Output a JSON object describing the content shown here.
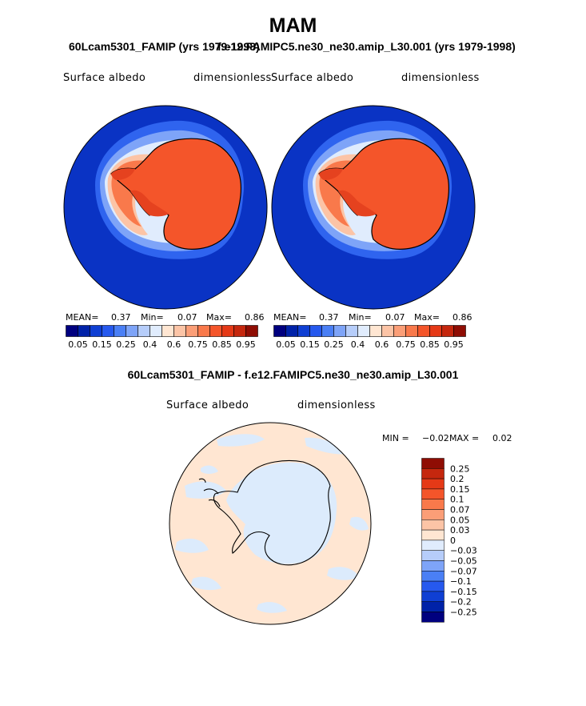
{
  "season": "MAM",
  "panels": [
    {
      "title": "60Lcam5301_FAMIP (yrs 1979-1998)",
      "variable_label": "Surface albedo",
      "units_label": "dimensionless",
      "stats": {
        "mean_label": "MEAN=",
        "mean": "0.37",
        "min_label": "Min=",
        "min": "0.07",
        "max_label": "Max=",
        "max": "0.86"
      }
    },
    {
      "title": "f.e12.FAMIPC5.ne30_ne30.amip_L30.001 (yrs 1979-1998)",
      "variable_label": "Surface albedo",
      "units_label": "dimensionless",
      "stats": {
        "mean_label": "MEAN=",
        "mean": "0.37",
        "min_label": "Min=",
        "min": "0.07",
        "max_label": "Max=",
        "max": "0.86"
      }
    }
  ],
  "colorbar_levels": [
    "0.05",
    "0.15",
    "0.25",
    "0.4",
    "0.6",
    "0.75",
    "0.85",
    "0.95"
  ],
  "colorbar_colors": [
    "#00007f",
    "#0022a8",
    "#0f3fd3",
    "#2659ee",
    "#4a7ff5",
    "#7ea4f8",
    "#b6cdfa",
    "#e0ecfd",
    "#ffe6d2",
    "#fcc4a6",
    "#fb9e77",
    "#f9794b",
    "#f4552a",
    "#e53917",
    "#c5270e",
    "#8f0d04"
  ],
  "difference": {
    "title": "60Lcam5301_FAMIP - f.e12.FAMIPC5.ne30_ne30.amip_L30.001",
    "variable_label": "Surface albedo",
    "units_label": "dimensionless",
    "stats": {
      "min_label": "MIN =",
      "min": "−0.02",
      "max_label": "MAX =",
      "max": "0.02"
    },
    "levels": [
      "0.25",
      "0.2",
      "0.15",
      "0.1",
      "0.07",
      "0.05",
      "0.03",
      "0",
      "−0.03",
      "−0.05",
      "−0.07",
      "−0.1",
      "−0.15",
      "−0.2",
      "−0.25"
    ],
    "colors": [
      "#8f0d04",
      "#c5270e",
      "#e53917",
      "#f4552a",
      "#f9794b",
      "#fb9e77",
      "#fcc4a6",
      "#ffe6d2",
      "#e0ecfd",
      "#b6cdfa",
      "#7ea4f8",
      "#4a7ff5",
      "#2659ee",
      "#0f3fd3",
      "#0022a8",
      "#00007f"
    ]
  }
}
